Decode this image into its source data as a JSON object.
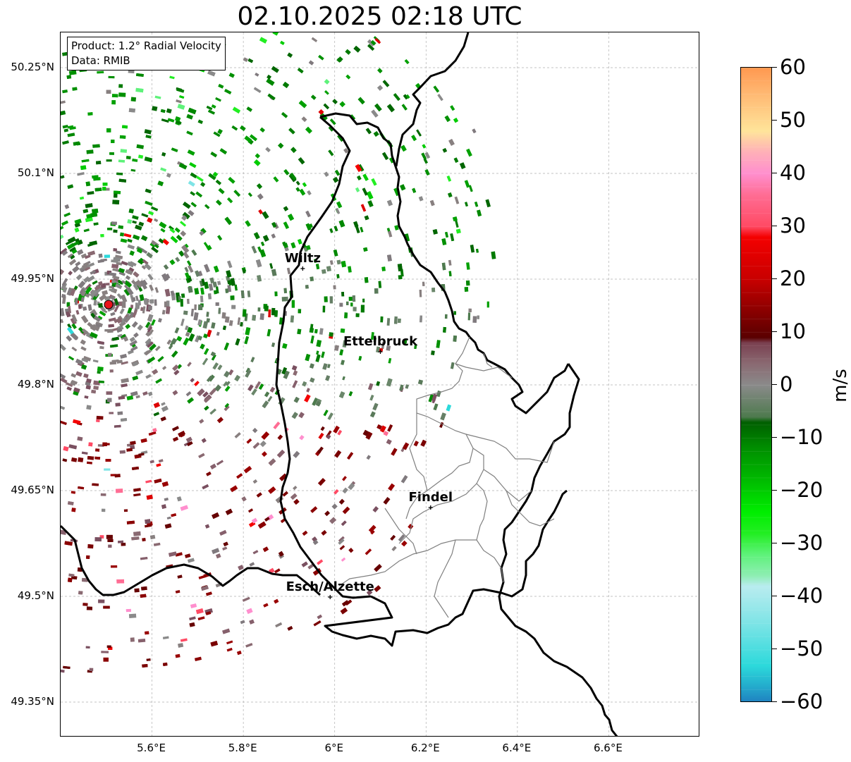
{
  "title": "02.10.2025 02:18 UTC",
  "info": {
    "product": "Product: 1.2° Radial Velocity",
    "data": "Data: RMIB"
  },
  "map": {
    "lon_range": [
      5.4,
      6.8
    ],
    "lat_range": [
      49.3,
      50.3
    ],
    "lat_ticks": [
      "50.25°N",
      "50.1°N",
      "49.95°N",
      "49.8°N",
      "49.65°N",
      "49.5°N",
      "49.35°N"
    ],
    "lon_ticks": [
      "5.6°E",
      "5.8°E",
      "6°E",
      "6.2°E",
      "6.4°E",
      "6.6°E"
    ],
    "grid": true,
    "radar_site": {
      "lon": 5.505,
      "lat": 49.914,
      "color": "#e8131b"
    },
    "cities": [
      {
        "name": "Wiltz",
        "lon": 5.93,
        "lat": 49.965
      },
      {
        "name": "Ettelbruck",
        "lon": 6.1,
        "lat": 49.847
      },
      {
        "name": "Findel",
        "lon": 6.21,
        "lat": 49.626
      },
      {
        "name": "Esch/Alzette",
        "lon": 5.99,
        "lat": 49.499
      }
    ]
  },
  "colorbar": {
    "min": -60,
    "max": 60,
    "ticks": [
      "60",
      "50",
      "40",
      "30",
      "20",
      "10",
      "0",
      "−10",
      "−20",
      "−30",
      "−40",
      "−50",
      "−60"
    ],
    "unit": "m/s",
    "stops": [
      {
        "v": -60,
        "c": "#1f7fc0"
      },
      {
        "v": -57,
        "c": "#23aacc"
      },
      {
        "v": -53,
        "c": "#2cd9db"
      },
      {
        "v": -45,
        "c": "#7ee4e6"
      },
      {
        "v": -38,
        "c": "#b9ecef"
      },
      {
        "v": -36,
        "c": "#8eeeb3"
      },
      {
        "v": -32,
        "c": "#5ef27a"
      },
      {
        "v": -28,
        "c": "#22ee22"
      },
      {
        "v": -24,
        "c": "#00ee00"
      },
      {
        "v": -18,
        "c": "#00bb00"
      },
      {
        "v": -12,
        "c": "#008f00"
      },
      {
        "v": -7,
        "c": "#005f00"
      },
      {
        "v": -6,
        "c": "#4e7a4e"
      },
      {
        "v": 0,
        "c": "#8a8a8a"
      },
      {
        "v": 4,
        "c": "#8a6a72"
      },
      {
        "v": 8,
        "c": "#7a4050"
      },
      {
        "v": 9,
        "c": "#5a0000"
      },
      {
        "v": 14,
        "c": "#8a0000"
      },
      {
        "v": 20,
        "c": "#c80000"
      },
      {
        "v": 28,
        "c": "#f40000"
      },
      {
        "v": 30,
        "c": "#ff4a64"
      },
      {
        "v": 36,
        "c": "#ff6d94"
      },
      {
        "v": 40,
        "c": "#ff8fce"
      },
      {
        "v": 44,
        "c": "#ffb0b8"
      },
      {
        "v": 48,
        "c": "#ffe49a"
      },
      {
        "v": 55,
        "c": "#ffb973"
      },
      {
        "v": 60,
        "c": "#ff9850"
      }
    ]
  }
}
